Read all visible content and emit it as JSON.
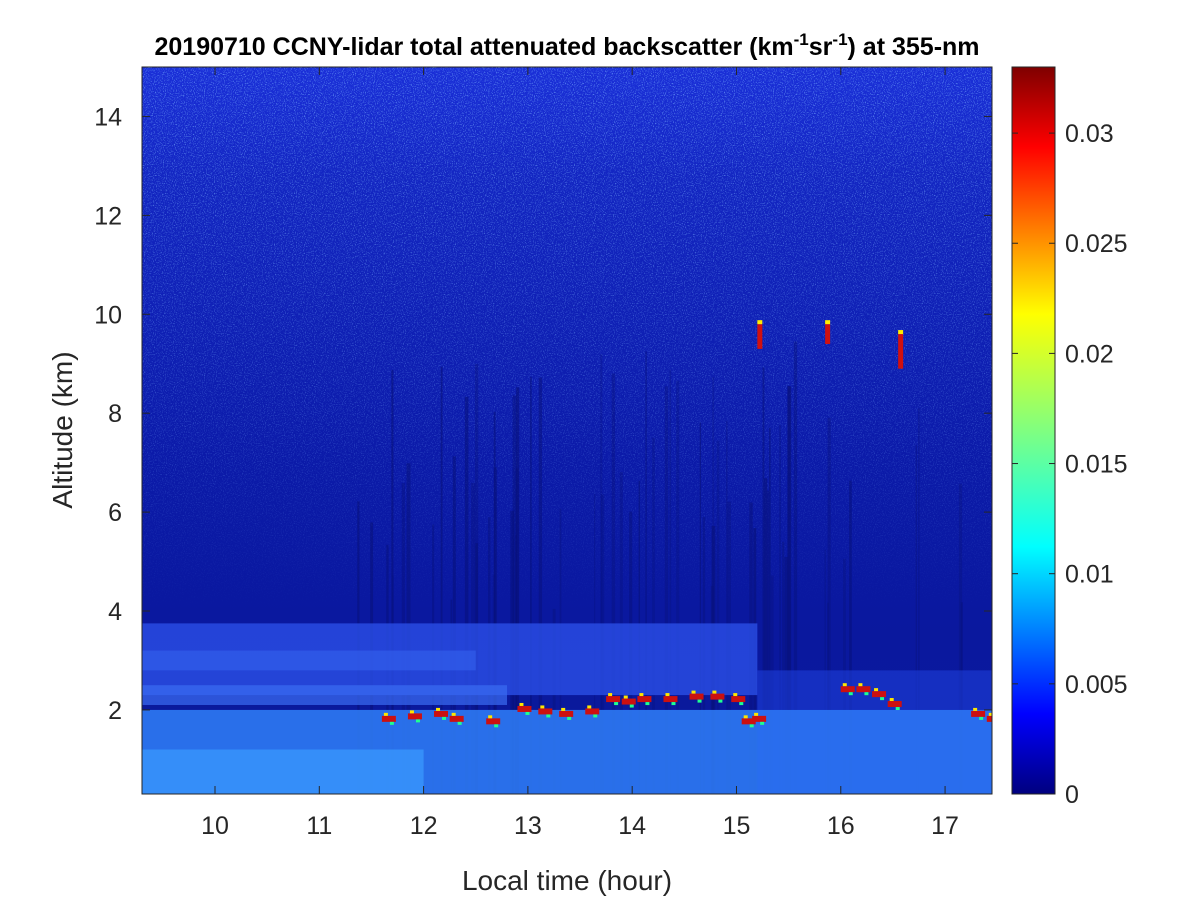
{
  "chart_data": {
    "type": "heatmap",
    "title": {
      "prefix": "20190710 CCNY-lidar total attenuated backscatter (km",
      "sup1": "-1",
      "mid": "sr",
      "sup2": "-1",
      "suffix": ") at 355-nm"
    },
    "xlabel": "Local time (hour)",
    "ylabel": "Altitude (km)",
    "xlim": [
      9.3,
      17.45
    ],
    "ylim": [
      0.3,
      15.0
    ],
    "xticks": [
      10,
      11,
      12,
      13,
      14,
      15,
      16,
      17
    ],
    "yticks": [
      2,
      4,
      6,
      8,
      10,
      12,
      14
    ],
    "colorbar": {
      "colormap": "jet",
      "range": [
        0,
        0.033
      ],
      "ticks": [
        0,
        0.005,
        0.01,
        0.015,
        0.02,
        0.025,
        0.03
      ],
      "tick_labels": [
        "0",
        "0.005",
        "0.01",
        "0.015",
        "0.02",
        "0.025",
        "0.03"
      ]
    },
    "features": {
      "boundary_layer_top_km": 3.75,
      "boundary_layer_end_hour": 15.2,
      "low_cloud_altitude_km": [
        1.7,
        2.4
      ],
      "cirrus": [
        {
          "time": 15.2,
          "alt": [
            9.3,
            9.8
          ]
        },
        {
          "time": 15.85,
          "alt": [
            9.4,
            9.8
          ]
        },
        {
          "time": 16.55,
          "alt": [
            8.9,
            9.6
          ]
        }
      ]
    }
  }
}
